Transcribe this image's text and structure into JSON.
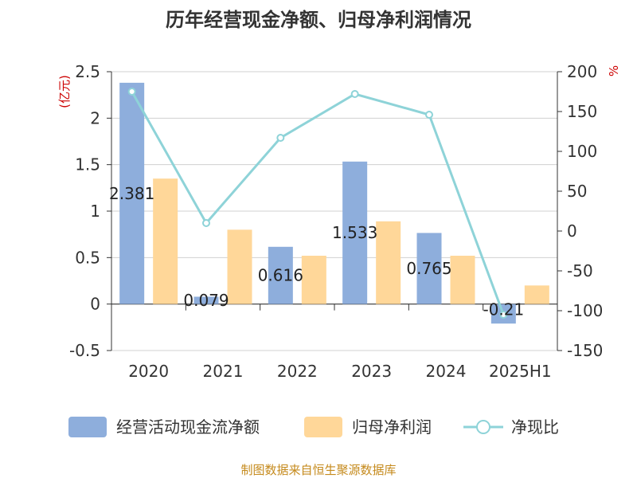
{
  "chart_data": {
    "type": "bar",
    "title": "历年经营现金净额、归母净利润情况",
    "categories": [
      "2020",
      "2021",
      "2022",
      "2023",
      "2024",
      "2025H1"
    ],
    "series": [
      {
        "name": "经营活动现金流净额",
        "type": "bar",
        "axis": "left",
        "color": "#8eaedc",
        "values": [
          2.381,
          0.079,
          0.616,
          1.533,
          0.765,
          -0.21
        ]
      },
      {
        "name": "归母净利润",
        "type": "bar",
        "axis": "left",
        "color": "#ffd799",
        "values": [
          1.35,
          0.8,
          0.52,
          0.89,
          0.52,
          0.2
        ]
      },
      {
        "name": "净现比",
        "type": "line",
        "axis": "right",
        "color": "#8ed3d8",
        "values": [
          175,
          10,
          117,
          172,
          146,
          -105
        ]
      }
    ],
    "data_labels": [
      "2.381",
      "0.079",
      "0.616",
      "1.533",
      "0.765",
      "-0.21"
    ],
    "left_axis": {
      "unit": "(亿元)",
      "min": -0.5,
      "max": 2.5,
      "ticks": [
        2.5,
        2,
        1.5,
        1,
        0.5,
        0,
        -0.5
      ],
      "tick_labels": [
        "2.5",
        "2",
        "1.5",
        "1",
        "0.5",
        "0",
        "-0.5"
      ]
    },
    "right_axis": {
      "unit": "%",
      "min": -150,
      "max": 200,
      "ticks": [
        200,
        150,
        100,
        50,
        0,
        -50,
        -100,
        -150
      ],
      "tick_labels": [
        "200",
        "150",
        "100",
        "50",
        "0",
        "-50",
        "-100",
        "-150"
      ]
    },
    "grid": true,
    "legend_position": "bottom"
  },
  "source": "制图数据来自恒生聚源数据库"
}
